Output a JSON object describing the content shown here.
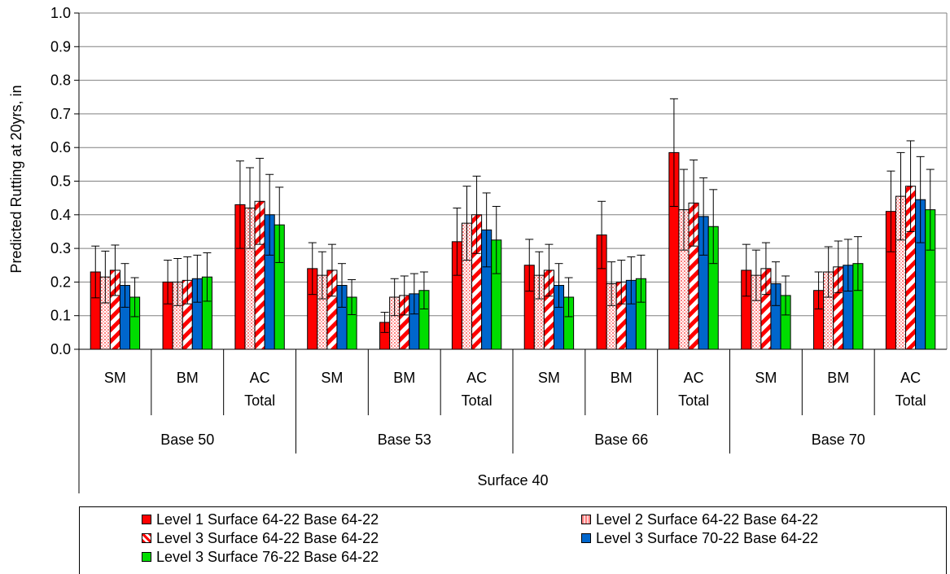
{
  "chart_data": {
    "type": "bar",
    "ylabel": "Predicted Rutting at 20yrs, in",
    "ylim": [
      0,
      1.0
    ],
    "yticks": [
      "0.0",
      "0.1",
      "0.2",
      "0.3",
      "0.4",
      "0.5",
      "0.6",
      "0.7",
      "0.8",
      "0.9",
      "1.0"
    ],
    "grid": true,
    "outer_category": "Surface 40",
    "groups": [
      "Base 50",
      "Base 53",
      "Base 66",
      "Base 70"
    ],
    "subcategories": [
      [
        "SM"
      ],
      [
        "BM"
      ],
      [
        "AC",
        "Total"
      ]
    ],
    "categories": [
      "Base 50 SM",
      "Base 50 BM",
      "Base 50 AC Total",
      "Base 53 SM",
      "Base 53 BM",
      "Base 53 AC Total",
      "Base 66 SM",
      "Base 66 BM",
      "Base 66 AC Total",
      "Base 70 SM",
      "Base 70 BM",
      "Base 70 AC Total"
    ],
    "series": [
      {
        "name": "Level 1 Surface 64-22 Base 64-22",
        "color": "#ff0000",
        "pattern": "solid",
        "values": [
          0.23,
          0.2,
          0.43,
          0.24,
          0.08,
          0.32,
          0.25,
          0.34,
          0.585,
          0.235,
          0.175,
          0.41
        ],
        "error": [
          0.077,
          0.065,
          0.13,
          0.077,
          0.03,
          0.1,
          0.077,
          0.1,
          0.16,
          0.077,
          0.055,
          0.12
        ]
      },
      {
        "name": "Level 2 Surface 64-22 Base 64-22",
        "color": "#ff9999",
        "pattern": "dotted",
        "values": [
          0.215,
          0.2,
          0.42,
          0.22,
          0.155,
          0.375,
          0.22,
          0.195,
          0.415,
          0.22,
          0.23,
          0.455
        ],
        "error": [
          0.077,
          0.07,
          0.12,
          0.07,
          0.055,
          0.11,
          0.07,
          0.065,
          0.12,
          0.075,
          0.075,
          0.13
        ]
      },
      {
        "name": "Level 3 Surface 64-22 Base 64-22",
        "color": "#ff0000",
        "pattern": "diagonal",
        "values": [
          0.235,
          0.205,
          0.44,
          0.235,
          0.16,
          0.4,
          0.235,
          0.2,
          0.435,
          0.24,
          0.245,
          0.485
        ],
        "error": [
          0.075,
          0.07,
          0.128,
          0.077,
          0.058,
          0.115,
          0.077,
          0.065,
          0.128,
          0.077,
          0.077,
          0.135
        ]
      },
      {
        "name": "Level 3 Surface 70-22 Base 64-22",
        "color": "#0066cc",
        "pattern": "solid",
        "values": [
          0.19,
          0.21,
          0.4,
          0.19,
          0.165,
          0.355,
          0.19,
          0.205,
          0.395,
          0.195,
          0.25,
          0.445
        ],
        "error": [
          0.065,
          0.07,
          0.12,
          0.065,
          0.06,
          0.11,
          0.065,
          0.07,
          0.115,
          0.065,
          0.077,
          0.128
        ]
      },
      {
        "name": "Level 3 Surface 76-22 Base 64-22",
        "color": "#00dd00",
        "pattern": "solid",
        "values": [
          0.155,
          0.215,
          0.37,
          0.155,
          0.175,
          0.325,
          0.155,
          0.21,
          0.365,
          0.16,
          0.255,
          0.415
        ],
        "error": [
          0.058,
          0.072,
          0.112,
          0.052,
          0.055,
          0.1,
          0.058,
          0.07,
          0.11,
          0.058,
          0.08,
          0.12
        ]
      }
    ],
    "legend_position": "bottom"
  }
}
